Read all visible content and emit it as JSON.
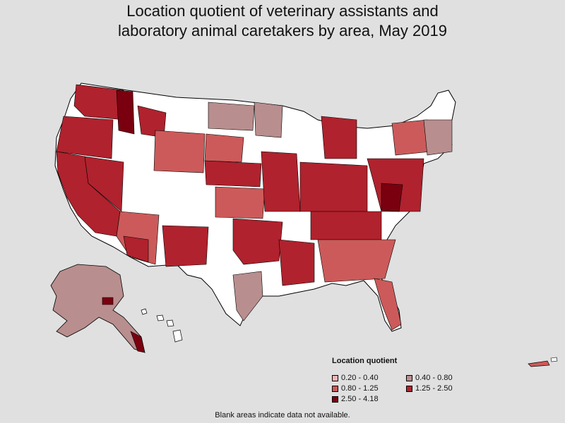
{
  "title_line1": "Location quotient of veterinary assistants and",
  "title_line2": "laboratory animal caretakers by area, May 2019",
  "legend": {
    "title": "Location quotient",
    "items": [
      {
        "label": "0.20 - 0.40",
        "color": "#f4b6b6"
      },
      {
        "label": "0.40 - 0.80",
        "color": "#b98e8e"
      },
      {
        "label": "0.80 - 1.25",
        "color": "#cc5a5a"
      },
      {
        "label": "1.25 - 2.50",
        "color": "#b0222d"
      },
      {
        "label": "2.50 - 4.18",
        "color": "#7a0010"
      }
    ]
  },
  "footer": "Blank areas indicate data not available.",
  "colors": {
    "background": "#e0e0e0",
    "blank": "#ffffff",
    "border": "#000000"
  }
}
